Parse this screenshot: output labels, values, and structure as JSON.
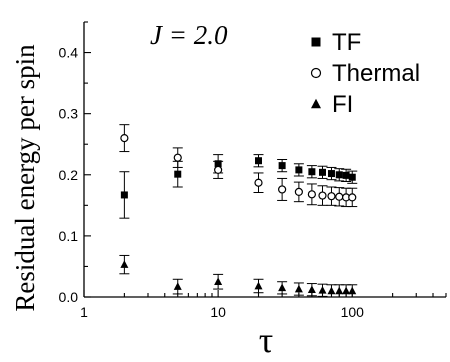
{
  "chart_data": {
    "type": "scatter",
    "title": "",
    "annotation": "J = 2.0",
    "xlabel": "τ",
    "ylabel": "Residual energy per spin",
    "xscale": "log",
    "xlim": [
      1,
      500
    ],
    "ylim": [
      0,
      0.45
    ],
    "x_ticks": [
      {
        "value": 1,
        "label": "1"
      },
      {
        "value": 10,
        "label": "10"
      },
      {
        "value": 100,
        "label": "100"
      }
    ],
    "y_ticks": [
      {
        "value": 0.0,
        "label": "0.0"
      },
      {
        "value": 0.1,
        "label": "0.1"
      },
      {
        "value": 0.2,
        "label": "0.2"
      },
      {
        "value": 0.3,
        "label": "0.3"
      },
      {
        "value": 0.4,
        "label": "0.4"
      }
    ],
    "legend_position": "top-right",
    "grid": false,
    "series": [
      {
        "name": "TF",
        "marker": "filled-square",
        "color": "#000000",
        "points": [
          {
            "x": 2,
            "y": 0.167,
            "err": 0.038
          },
          {
            "x": 5,
            "y": 0.201,
            "err": 0.021
          },
          {
            "x": 10,
            "y": 0.218,
            "err": 0.015
          },
          {
            "x": 20,
            "y": 0.223,
            "err": 0.01
          },
          {
            "x": 30,
            "y": 0.215,
            "err": 0.01
          },
          {
            "x": 40,
            "y": 0.208,
            "err": 0.01
          },
          {
            "x": 50,
            "y": 0.205,
            "err": 0.01
          },
          {
            "x": 60,
            "y": 0.204,
            "err": 0.01
          },
          {
            "x": 70,
            "y": 0.202,
            "err": 0.01
          },
          {
            "x": 80,
            "y": 0.2,
            "err": 0.01
          },
          {
            "x": 90,
            "y": 0.199,
            "err": 0.01
          },
          {
            "x": 100,
            "y": 0.196,
            "err": 0.01
          }
        ]
      },
      {
        "name": "Thermal",
        "marker": "open-circle",
        "color": "#000000",
        "points": [
          {
            "x": 2,
            "y": 0.26,
            "err": 0.022
          },
          {
            "x": 5,
            "y": 0.228,
            "err": 0.016
          },
          {
            "x": 10,
            "y": 0.208,
            "err": 0.014
          },
          {
            "x": 20,
            "y": 0.187,
            "err": 0.016
          },
          {
            "x": 30,
            "y": 0.176,
            "err": 0.018
          },
          {
            "x": 40,
            "y": 0.172,
            "err": 0.016
          },
          {
            "x": 50,
            "y": 0.168,
            "err": 0.017
          },
          {
            "x": 60,
            "y": 0.166,
            "err": 0.016
          },
          {
            "x": 70,
            "y": 0.165,
            "err": 0.015
          },
          {
            "x": 80,
            "y": 0.164,
            "err": 0.015
          },
          {
            "x": 90,
            "y": 0.163,
            "err": 0.015
          },
          {
            "x": 100,
            "y": 0.163,
            "err": 0.015
          }
        ]
      },
      {
        "name": "FI",
        "marker": "filled-triangle",
        "color": "#000000",
        "points": [
          {
            "x": 2,
            "y": 0.053,
            "err": 0.015
          },
          {
            "x": 5,
            "y": 0.017,
            "err": 0.012
          },
          {
            "x": 10,
            "y": 0.025,
            "err": 0.012
          },
          {
            "x": 20,
            "y": 0.018,
            "err": 0.011
          },
          {
            "x": 30,
            "y": 0.015,
            "err": 0.01
          },
          {
            "x": 40,
            "y": 0.013,
            "err": 0.01
          },
          {
            "x": 50,
            "y": 0.012,
            "err": 0.01
          },
          {
            "x": 60,
            "y": 0.011,
            "err": 0.01
          },
          {
            "x": 70,
            "y": 0.01,
            "err": 0.01
          },
          {
            "x": 80,
            "y": 0.01,
            "err": 0.01
          },
          {
            "x": 90,
            "y": 0.01,
            "err": 0.01
          },
          {
            "x": 100,
            "y": 0.01,
            "err": 0.01
          }
        ]
      }
    ]
  }
}
